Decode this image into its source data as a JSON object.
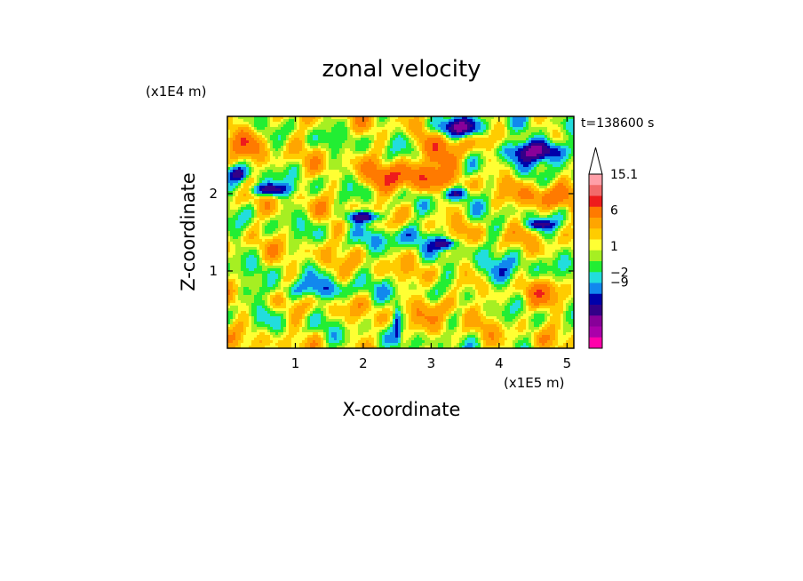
{
  "chart_data": {
    "type": "heatmap",
    "title": "zonal velocity",
    "xlabel": "X-coordinate",
    "ylabel": "Z-coordinate",
    "x_unit": "(x1E5 m)",
    "y_unit": "(x1E4 m)",
    "time_label": "t=138600 s",
    "xlim": [
      0,
      5.1
    ],
    "ylim": [
      0,
      3.0
    ],
    "x_ticks": [
      1,
      2,
      3,
      4,
      5
    ],
    "y_ticks": [
      1,
      2
    ],
    "colorbar": {
      "labels": [
        {
          "text": "15.1",
          "value": 15.1
        },
        {
          "text": "6",
          "value": 6
        },
        {
          "text": "1",
          "value": 1
        },
        {
          "text": "−2",
          "value": -2
        },
        {
          "text": "−9",
          "value": -9
        }
      ],
      "levels": [
        {
          "value": 12,
          "color": "#ff9fa8"
        },
        {
          "value": 9,
          "color": "#f26a6a"
        },
        {
          "value": 6.5,
          "color": "#ee1c1c"
        },
        {
          "value": 4,
          "color": "#ff7a00"
        },
        {
          "value": 2.5,
          "color": "#ffa500"
        },
        {
          "value": 1.5,
          "color": "#ffcc00"
        },
        {
          "value": 0.8,
          "color": "#ffff33"
        },
        {
          "value": 0,
          "color": "#a6ef22"
        },
        {
          "value": -1,
          "color": "#22ee33"
        },
        {
          "value": -2,
          "color": "#22dddd"
        },
        {
          "value": -3.5,
          "color": "#1188ee"
        },
        {
          "value": -5,
          "color": "#0000aa"
        },
        {
          "value": -7,
          "color": "#330088"
        },
        {
          "value": -9,
          "color": "#880099"
        },
        {
          "value": -11,
          "color": "#aa00aa"
        },
        {
          "value": -13,
          "color": "#ff00aa"
        }
      ]
    },
    "features": [
      {
        "x": 2.6,
        "z": 2.2,
        "sx": 0.55,
        "sz": 0.18,
        "amp": 5
      },
      {
        "x": 3.2,
        "z": 2.55,
        "sx": 0.35,
        "sz": 0.2,
        "amp": 5
      },
      {
        "x": 4.7,
        "z": 1.95,
        "sx": 0.35,
        "sz": 0.15,
        "amp": 4
      },
      {
        "x": 0.3,
        "z": 2.7,
        "sx": 0.3,
        "sz": 0.2,
        "amp": 3
      },
      {
        "x": 3.2,
        "z": 0.55,
        "sx": 0.35,
        "sz": 0.15,
        "amp": 3
      },
      {
        "x": 4.6,
        "z": 0.7,
        "sx": 0.4,
        "sz": 0.2,
        "amp": 2.5
      },
      {
        "x": 3.4,
        "z": 2.85,
        "sx": 0.35,
        "sz": 0.12,
        "amp": -9
      },
      {
        "x": 4.6,
        "z": 2.55,
        "sx": 0.5,
        "sz": 0.14,
        "amp": -9
      },
      {
        "x": 2.0,
        "z": 1.7,
        "sx": 0.25,
        "sz": 0.07,
        "amp": -8
      },
      {
        "x": 0.6,
        "z": 2.05,
        "sx": 0.3,
        "sz": 0.08,
        "amp": -7
      },
      {
        "x": 0.15,
        "z": 2.25,
        "sx": 0.15,
        "sz": 0.1,
        "amp": -6
      },
      {
        "x": 3.35,
        "z": 2.0,
        "sx": 0.2,
        "sz": 0.08,
        "amp": -6
      },
      {
        "x": 3.2,
        "z": 1.35,
        "sx": 0.15,
        "sz": 0.07,
        "amp": -7
      },
      {
        "x": 4.6,
        "z": 1.6,
        "sx": 0.2,
        "sz": 0.06,
        "amp": -6
      },
      {
        "x": 2.6,
        "z": 1.45,
        "sx": 0.45,
        "sz": 0.15,
        "amp": -3
      },
      {
        "x": 1.2,
        "z": 0.75,
        "sx": 0.8,
        "sz": 0.12,
        "amp": -3
      },
      {
        "x": 4.0,
        "z": 0.95,
        "sx": 0.6,
        "sz": 0.2,
        "amp": -2.5
      },
      {
        "x": 2.5,
        "z": 0.3,
        "sx": 0.05,
        "sz": 0.25,
        "amp": -4
      }
    ]
  }
}
